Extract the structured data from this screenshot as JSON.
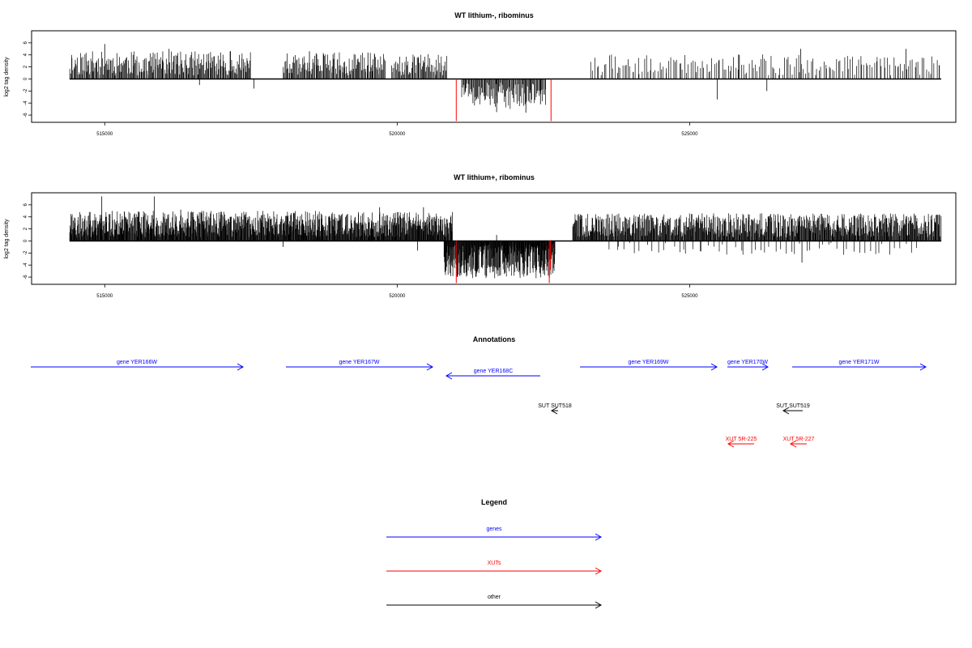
{
  "chart_data": [
    {
      "type": "bar",
      "title": "WT lithium-, ribominus",
      "ylabel": "log2 tag density",
      "xlabel": "",
      "xlim": [
        513750,
        529550
      ],
      "ylim": [
        -7.2,
        8.0
      ],
      "yticks": [
        "6",
        "4",
        "2",
        "0",
        "-2",
        "-4",
        "-6"
      ],
      "xticks": [
        "515000",
        "520000",
        "525000"
      ],
      "grid": false,
      "regions": [
        {
          "from": 514400,
          "to": 517500,
          "kind": "pos",
          "max": 4.0,
          "n": 240,
          "seed": 11
        },
        {
          "from": 518050,
          "to": 519800,
          "kind": "pos",
          "max": 3.8,
          "n": 130,
          "seed": 12
        },
        {
          "from": 519900,
          "to": 520850,
          "kind": "pos",
          "max": 3.6,
          "n": 70,
          "seed": 13
        },
        {
          "from": 521100,
          "to": 522550,
          "kind": "neg",
          "max": 4.4,
          "n": 110,
          "seed": 14
        },
        {
          "from": 523300,
          "to": 529300,
          "kind": "pos",
          "max": 3.5,
          "n": 180,
          "seed": 15
        }
      ],
      "spikes": [
        {
          "x": 515000,
          "y": 5.8
        },
        {
          "x": 516100,
          "y": 5.0
        },
        {
          "x": 517150,
          "y": 4.6
        },
        {
          "x": 516620,
          "y": -1.0
        },
        {
          "x": 517550,
          "y": -1.6
        },
        {
          "x": 518500,
          "y": 4.6
        },
        {
          "x": 519500,
          "y": 4.4
        },
        {
          "x": 521700,
          "y": -5.5
        },
        {
          "x": 522200,
          "y": -5.6
        },
        {
          "x": 522450,
          "y": -4.2
        },
        {
          "x": 525850,
          "y": 4.0
        },
        {
          "x": 525470,
          "y": -3.4
        },
        {
          "x": 526320,
          "y": -2.0
        },
        {
          "x": 526900,
          "y": 5.0
        },
        {
          "x": 528700,
          "y": 5.0
        }
      ],
      "red_marks": [
        {
          "x": 521010,
          "y": -7.0
        },
        {
          "x": 522630,
          "y": -7.0
        }
      ]
    },
    {
      "type": "bar",
      "title": "WT lithium+, ribominus",
      "ylabel": "log2 tag density",
      "xlabel": "",
      "xlim": [
        513750,
        529550
      ],
      "ylim": [
        -7.2,
        8.0
      ],
      "yticks": [
        "6",
        "4",
        "2",
        "0",
        "-2",
        "-4",
        "-6"
      ],
      "xticks": [
        "515000",
        "520000",
        "525000"
      ],
      "grid": false,
      "regions": [
        {
          "from": 514400,
          "to": 518800,
          "kind": "pos",
          "max": 4.4,
          "n": 620,
          "seed": 21
        },
        {
          "from": 518800,
          "to": 520950,
          "kind": "pos",
          "max": 4.2,
          "n": 300,
          "seed": 22
        },
        {
          "from": 520800,
          "to": 522700,
          "kind": "neg",
          "max": 5.6,
          "n": 320,
          "seed": 23
        },
        {
          "from": 523000,
          "to": 529300,
          "kind": "pos",
          "max": 4.0,
          "n": 720,
          "seed": 24
        },
        {
          "from": 523600,
          "to": 528900,
          "kind": "negsparse",
          "max": 2.0,
          "n": 60,
          "seed": 25
        }
      ],
      "spikes": [
        {
          "x": 514950,
          "y": 7.4
        },
        {
          "x": 515850,
          "y": 7.4
        },
        {
          "x": 516300,
          "y": 5.2
        },
        {
          "x": 520450,
          "y": 5.6
        },
        {
          "x": 519700,
          "y": 5.6
        },
        {
          "x": 521700,
          "y": 1.0
        },
        {
          "x": 526920,
          "y": -3.6
        },
        {
          "x": 520350,
          "y": -1.6
        },
        {
          "x": 518050,
          "y": -1.0
        }
      ],
      "red_marks": [
        {
          "x": 521010,
          "y": -7.0
        },
        {
          "x": 522600,
          "y": -7.0
        },
        {
          "x": 522620,
          "y": -4.8
        }
      ]
    }
  ],
  "annotations": {
    "title": "Annotations",
    "items": [
      {
        "label": "gene YER166W",
        "type": "gene",
        "dir": "fwd",
        "x1": 38,
        "x2": 300,
        "row": 0
      },
      {
        "label": "gene YER167W",
        "type": "gene",
        "dir": "fwd",
        "x1": 353,
        "x2": 534,
        "row": 0
      },
      {
        "label": "gene YER168C",
        "type": "gene",
        "dir": "rev",
        "x1": 551,
        "x2": 667,
        "row": 1
      },
      {
        "label": "gene YER169W",
        "type": "gene",
        "dir": "fwd",
        "x1": 716,
        "x2": 885,
        "row": 0
      },
      {
        "label": "gene YER170W",
        "type": "gene",
        "dir": "fwd",
        "x1": 898,
        "x2": 948,
        "row": 0
      },
      {
        "label": "gene YER171W",
        "type": "gene",
        "dir": "fwd",
        "x1": 978,
        "x2": 1143,
        "row": 0
      },
      {
        "label": "SUT SUT518",
        "type": "other",
        "dir": "rev",
        "x1": 681,
        "x2": 689,
        "row": 2
      },
      {
        "label": "SUT SUT519",
        "type": "other",
        "dir": "rev",
        "x1": 967,
        "x2": 991,
        "row": 2
      },
      {
        "label": "XUT 5R-225",
        "type": "xut",
        "dir": "rev",
        "x1": 899,
        "x2": 931,
        "row": 3
      },
      {
        "label": "XUT 5R-227",
        "type": "xut",
        "dir": "rev",
        "x1": 976,
        "x2": 996,
        "row": 3
      }
    ]
  },
  "legend": {
    "title": "Legend",
    "items": [
      {
        "label": "genes",
        "type": "gene"
      },
      {
        "label": "XUTs",
        "type": "xut"
      },
      {
        "label": "other",
        "type": "other"
      }
    ]
  },
  "colors": {
    "gene": "#0000ff",
    "xut": "#ff0000",
    "other": "#000000",
    "signal": "#000000",
    "mark": "#ff0000"
  }
}
